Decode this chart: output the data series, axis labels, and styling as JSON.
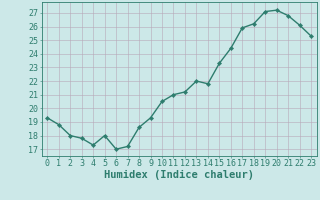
{
  "x": [
    0,
    1,
    2,
    3,
    4,
    5,
    6,
    7,
    8,
    9,
    10,
    11,
    12,
    13,
    14,
    15,
    16,
    17,
    18,
    19,
    20,
    21,
    22,
    23
  ],
  "y": [
    19.3,
    18.8,
    18.0,
    17.8,
    17.3,
    18.0,
    17.0,
    17.2,
    18.6,
    19.3,
    20.5,
    21.0,
    21.2,
    22.0,
    21.8,
    23.3,
    24.4,
    25.9,
    26.2,
    27.1,
    27.2,
    26.8,
    26.1,
    25.3
  ],
  "line_color": "#2e7d6e",
  "marker": "D",
  "marker_size": 2.2,
  "bg_color": "#cce8e8",
  "grid_color": "#b8a8b8",
  "axis_color": "#2e7d6e",
  "xlabel": "Humidex (Indice chaleur)",
  "xlabel_fontsize": 7.5,
  "ylabel_ticks": [
    17,
    18,
    19,
    20,
    21,
    22,
    23,
    24,
    25,
    26,
    27
  ],
  "ylim": [
    16.5,
    27.8
  ],
  "xlim": [
    -0.5,
    23.5
  ],
  "tick_fontsize": 6.0,
  "line_width": 1.0
}
